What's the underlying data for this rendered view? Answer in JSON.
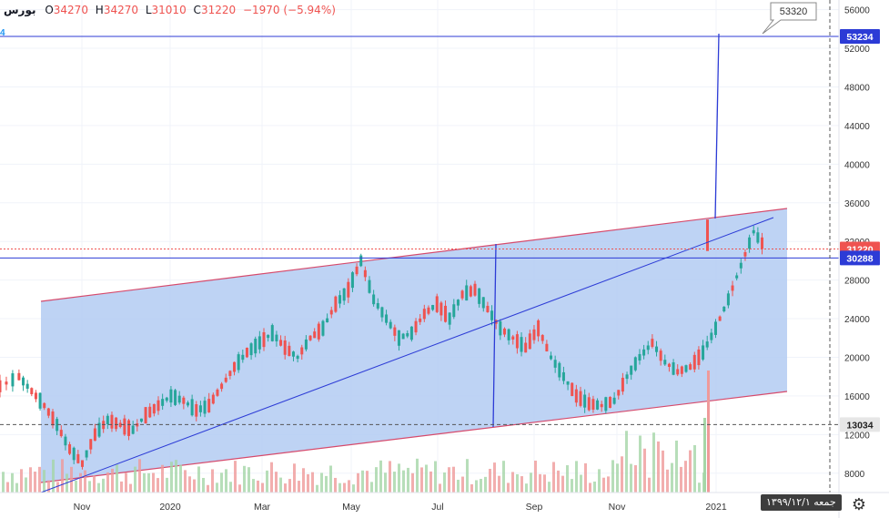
{
  "header": {
    "symbol": "بورس",
    "open_label": "O",
    "open": "34270",
    "high_label": "H",
    "high": "34270",
    "low_label": "L",
    "low": "31010",
    "close_label": "C",
    "close": "31220",
    "change": "−1970 (−5.94%)"
  },
  "left_tag": "4",
  "callout_label": "53320",
  "price_badges": [
    {
      "label": "53234",
      "value": 53234,
      "bg": "#2c3bd6",
      "fg": "#ffffff"
    },
    {
      "label": "31220",
      "value": 31220,
      "bg": "#ef5350",
      "fg": "#ffffff"
    },
    {
      "label": "30288",
      "value": 30288,
      "bg": "#2c3bd6",
      "fg": "#ffffff"
    },
    {
      "label": "13034",
      "value": 13034,
      "bg": "#e6e6e6",
      "fg": "#222222"
    }
  ],
  "date_badge": "جمعه ۱۳۹۹/۱۲/۱",
  "settings_icon": "gear-icon",
  "colors": {
    "up": "#26a69a",
    "down": "#ef5350",
    "up_volume": "#a5d6a7",
    "down_volume": "#ef9a9a",
    "channel_fill": "#b3cbf2",
    "channel_edge": "#d64a6c",
    "trend_line": "#2c3bd6"
  },
  "chart_data": {
    "type": "candlestick",
    "title": "",
    "x_ticks": [
      "Nov",
      "2020",
      "Mar",
      "May",
      "Jul",
      "Sep",
      "Nov",
      "2021"
    ],
    "y_ticks": [
      8000,
      12000,
      16000,
      20000,
      24000,
      28000,
      32000,
      36000,
      40000,
      44000,
      48000,
      52000,
      56000
    ],
    "ylim": [
      6000,
      57000
    ],
    "grid": true,
    "horizontal_lines": [
      53234,
      31220,
      30288,
      13034
    ],
    "series": [
      {
        "name": "",
        "points": [
          [
            -5,
            17000
          ],
          [
            -2,
            18000
          ],
          [
            0,
            16500
          ],
          [
            2,
            15000
          ],
          [
            4,
            13000
          ],
          [
            6,
            10500
          ],
          [
            8,
            9000
          ],
          [
            10,
            12000
          ],
          [
            12,
            13500
          ],
          [
            14,
            13000
          ],
          [
            16,
            12500
          ],
          [
            18,
            14000
          ],
          [
            20,
            15000
          ],
          [
            22,
            16000
          ],
          [
            24,
            15500
          ],
          [
            26,
            14500
          ],
          [
            28,
            15000
          ],
          [
            30,
            17000
          ],
          [
            32,
            19000
          ],
          [
            34,
            20500
          ],
          [
            36,
            21500
          ],
          [
            38,
            22500
          ],
          [
            40,
            21000
          ],
          [
            42,
            20000
          ],
          [
            44,
            22000
          ],
          [
            46,
            23000
          ],
          [
            48,
            25500
          ],
          [
            50,
            27000
          ],
          [
            52,
            30000
          ],
          [
            54,
            26000
          ],
          [
            56,
            24000
          ],
          [
            58,
            22000
          ],
          [
            60,
            22500
          ],
          [
            62,
            24500
          ],
          [
            64,
            25500
          ],
          [
            66,
            24000
          ],
          [
            68,
            26500
          ],
          [
            70,
            27000
          ],
          [
            72,
            25000
          ],
          [
            74,
            23000
          ],
          [
            76,
            22000
          ],
          [
            78,
            21000
          ],
          [
            80,
            23000
          ],
          [
            82,
            20000
          ],
          [
            84,
            18000
          ],
          [
            86,
            16000
          ],
          [
            88,
            15200
          ],
          [
            90,
            15000
          ],
          [
            92,
            15500
          ],
          [
            94,
            18000
          ],
          [
            96,
            20000
          ],
          [
            98,
            21500
          ],
          [
            100,
            19500
          ],
          [
            102,
            18500
          ],
          [
            104,
            19000
          ],
          [
            106,
            20500
          ],
          [
            108,
            23000
          ],
          [
            110,
            26000
          ],
          [
            112,
            29500
          ],
          [
            114,
            33000
          ],
          [
            116,
            31220
          ]
        ]
      }
    ],
    "markers": [
      {
        "date_index": 116,
        "close": 31220
      }
    ]
  }
}
